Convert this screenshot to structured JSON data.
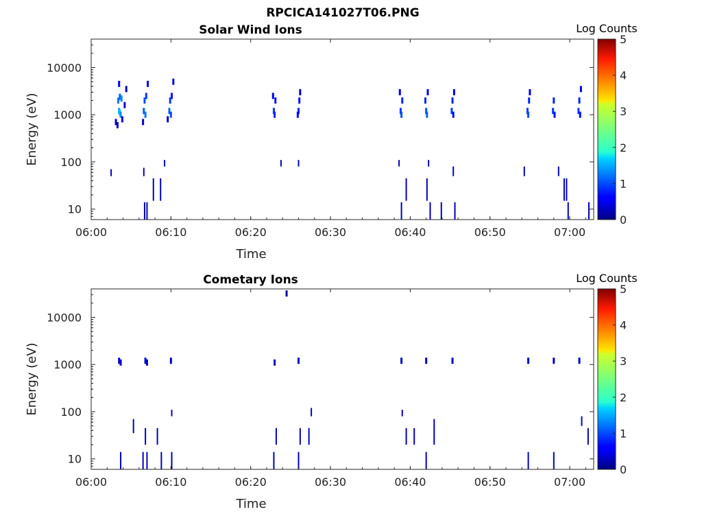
{
  "figure": {
    "title": "RPCICA141027T06.PNG"
  },
  "colors": {
    "axis": "#262626",
    "background": "#ffffff"
  },
  "chart_data": [
    {
      "type": "heatmap",
      "title": "Solar Wind Ions",
      "xlabel": "Time",
      "ylabel": "Energy (eV)",
      "x_ticks": [
        "06:00",
        "06:10",
        "06:20",
        "06:30",
        "06:40",
        "06:50",
        "07:00"
      ],
      "x_tick_minutes": [
        0,
        10,
        20,
        30,
        40,
        50,
        60
      ],
      "xlim_minutes": [
        0,
        63
      ],
      "y_ticks": [
        "10",
        "100",
        "1000",
        "10000"
      ],
      "y_tick_values": [
        10,
        100,
        1000,
        10000
      ],
      "ylim": [
        6,
        40000
      ],
      "y_scale": "log",
      "colorbar": {
        "label": "Log Counts",
        "min": 0,
        "max": 5,
        "ticks": [
          "0",
          "1",
          "2",
          "3",
          "4",
          "5"
        ],
        "colormap": "jet"
      },
      "bursts_minutes": [
        3.7,
        6.8,
        10.0,
        23.0,
        26.0,
        38.9,
        42.0,
        45.3,
        54.8,
        58.0,
        61.2
      ],
      "cells": [
        {
          "t": 3.5,
          "e": 1200,
          "v": 1.4
        },
        {
          "t": 3.6,
          "e": 1100,
          "v": 1.6
        },
        {
          "t": 3.7,
          "e": 1000,
          "v": 1.3
        },
        {
          "t": 3.4,
          "e": 2000,
          "v": 1.2
        },
        {
          "t": 3.6,
          "e": 2400,
          "v": 1.1
        },
        {
          "t": 3.8,
          "e": 2200,
          "v": 1.3
        },
        {
          "t": 3.5,
          "e": 4500,
          "v": 0.6
        },
        {
          "t": 3.9,
          "e": 800,
          "v": 0.5
        },
        {
          "t": 3.3,
          "e": 600,
          "v": 0.4
        },
        {
          "t": 4.2,
          "e": 1600,
          "v": 0.5
        },
        {
          "t": 4.4,
          "e": 3500,
          "v": 0.3
        },
        {
          "t": 3.1,
          "e": 700,
          "v": 0.3
        },
        {
          "t": 6.6,
          "e": 1200,
          "v": 1.1
        },
        {
          "t": 6.8,
          "e": 1000,
          "v": 1.2
        },
        {
          "t": 6.7,
          "e": 2000,
          "v": 1.0
        },
        {
          "t": 6.9,
          "e": 2500,
          "v": 0.9
        },
        {
          "t": 7.1,
          "e": 4500,
          "v": 0.5
        },
        {
          "t": 6.5,
          "e": 700,
          "v": 0.4
        },
        {
          "t": 9.8,
          "e": 1200,
          "v": 1.1
        },
        {
          "t": 10.0,
          "e": 1000,
          "v": 1.0
        },
        {
          "t": 9.9,
          "e": 2000,
          "v": 0.9
        },
        {
          "t": 10.1,
          "e": 2500,
          "v": 0.7
        },
        {
          "t": 10.3,
          "e": 5000,
          "v": 0.4
        },
        {
          "t": 9.6,
          "e": 800,
          "v": 0.3
        },
        {
          "t": 22.9,
          "e": 1200,
          "v": 0.9
        },
        {
          "t": 23.0,
          "e": 1000,
          "v": 0.8
        },
        {
          "t": 23.1,
          "e": 2000,
          "v": 0.7
        },
        {
          "t": 22.8,
          "e": 2500,
          "v": 0.5
        },
        {
          "t": 26.0,
          "e": 1200,
          "v": 0.8
        },
        {
          "t": 26.1,
          "e": 2000,
          "v": 0.7
        },
        {
          "t": 25.9,
          "e": 1000,
          "v": 0.6
        },
        {
          "t": 26.2,
          "e": 3000,
          "v": 0.4
        },
        {
          "t": 38.8,
          "e": 1200,
          "v": 0.9
        },
        {
          "t": 38.9,
          "e": 1000,
          "v": 1.0
        },
        {
          "t": 39.0,
          "e": 2000,
          "v": 0.8
        },
        {
          "t": 38.7,
          "e": 3000,
          "v": 0.5
        },
        {
          "t": 42.0,
          "e": 1200,
          "v": 1.0
        },
        {
          "t": 42.1,
          "e": 1000,
          "v": 1.1
        },
        {
          "t": 41.9,
          "e": 2000,
          "v": 0.8
        },
        {
          "t": 42.2,
          "e": 3000,
          "v": 0.6
        },
        {
          "t": 45.2,
          "e": 1200,
          "v": 0.9
        },
        {
          "t": 45.3,
          "e": 2000,
          "v": 0.8
        },
        {
          "t": 45.4,
          "e": 1000,
          "v": 0.7
        },
        {
          "t": 45.5,
          "e": 3000,
          "v": 0.5
        },
        {
          "t": 54.7,
          "e": 1200,
          "v": 0.9
        },
        {
          "t": 54.8,
          "e": 1000,
          "v": 1.0
        },
        {
          "t": 54.9,
          "e": 2000,
          "v": 0.8
        },
        {
          "t": 55.0,
          "e": 3000,
          "v": 0.5
        },
        {
          "t": 57.9,
          "e": 1200,
          "v": 0.9
        },
        {
          "t": 58.0,
          "e": 2000,
          "v": 0.8
        },
        {
          "t": 58.1,
          "e": 1000,
          "v": 0.7
        },
        {
          "t": 61.1,
          "e": 1200,
          "v": 0.9
        },
        {
          "t": 61.2,
          "e": 2000,
          "v": 0.8
        },
        {
          "t": 61.3,
          "e": 1000,
          "v": 0.7
        },
        {
          "t": 61.4,
          "e": 3500,
          "v": 0.5
        }
      ],
      "vertical_streaks": [
        {
          "t": 2.5,
          "e_lo": 50,
          "e_hi": 70
        },
        {
          "t": 6.7,
          "e_lo": 6,
          "e_hi": 14
        },
        {
          "t": 7.0,
          "e_lo": 6,
          "e_hi": 14
        },
        {
          "t": 7.8,
          "e_lo": 15,
          "e_hi": 45
        },
        {
          "t": 8.7,
          "e_lo": 15,
          "e_hi": 45
        },
        {
          "t": 9.2,
          "e_lo": 80,
          "e_hi": 110
        },
        {
          "t": 6.6,
          "e_lo": 50,
          "e_hi": 75
        },
        {
          "t": 23.8,
          "e_lo": 80,
          "e_hi": 110
        },
        {
          "t": 26.0,
          "e_lo": 80,
          "e_hi": 110
        },
        {
          "t": 38.9,
          "e_lo": 6,
          "e_hi": 14
        },
        {
          "t": 39.5,
          "e_lo": 15,
          "e_hi": 45
        },
        {
          "t": 42.1,
          "e_lo": 15,
          "e_hi": 45
        },
        {
          "t": 42.5,
          "e_lo": 6,
          "e_hi": 14
        },
        {
          "t": 43.9,
          "e_lo": 6,
          "e_hi": 14
        },
        {
          "t": 45.6,
          "e_lo": 6,
          "e_hi": 14
        },
        {
          "t": 45.4,
          "e_lo": 50,
          "e_hi": 80
        },
        {
          "t": 54.3,
          "e_lo": 50,
          "e_hi": 80
        },
        {
          "t": 58.6,
          "e_lo": 50,
          "e_hi": 80
        },
        {
          "t": 59.3,
          "e_lo": 15,
          "e_hi": 45
        },
        {
          "t": 59.6,
          "e_lo": 15,
          "e_hi": 45
        },
        {
          "t": 59.8,
          "e_lo": 6,
          "e_hi": 14
        },
        {
          "t": 62.4,
          "e_lo": 6,
          "e_hi": 14
        },
        {
          "t": 42.3,
          "e_lo": 80,
          "e_hi": 110
        },
        {
          "t": 38.6,
          "e_lo": 80,
          "e_hi": 110
        }
      ]
    },
    {
      "type": "heatmap",
      "title": "Cometary Ions",
      "xlabel": "Time",
      "ylabel": "Energy (eV)",
      "x_ticks": [
        "06:00",
        "06:10",
        "06:20",
        "06:30",
        "06:40",
        "06:50",
        "07:00"
      ],
      "x_tick_minutes": [
        0,
        10,
        20,
        30,
        40,
        50,
        60
      ],
      "xlim_minutes": [
        0,
        63
      ],
      "y_ticks": [
        "10",
        "100",
        "1000",
        "10000"
      ],
      "y_tick_values": [
        10,
        100,
        1000,
        10000
      ],
      "ylim": [
        6,
        40000
      ],
      "y_scale": "log",
      "colorbar": {
        "label": "Log Counts",
        "min": 0,
        "max": 5,
        "ticks": [
          "0",
          "1",
          "2",
          "3",
          "4",
          "5"
        ],
        "colormap": "jet"
      },
      "bursts_minutes": [
        3.7,
        6.8,
        10.0,
        23.0,
        26.0,
        38.9,
        42.0,
        45.3,
        54.8,
        58.0,
        61.2
      ],
      "cells": [
        {
          "t": 3.5,
          "e": 1200,
          "v": 0.4
        },
        {
          "t": 3.7,
          "e": 1100,
          "v": 0.3
        },
        {
          "t": 6.8,
          "e": 1200,
          "v": 0.4
        },
        {
          "t": 7.0,
          "e": 1100,
          "v": 0.3
        },
        {
          "t": 10.0,
          "e": 1200,
          "v": 0.3
        },
        {
          "t": 23.0,
          "e": 1100,
          "v": 0.3
        },
        {
          "t": 26.0,
          "e": 1200,
          "v": 0.3
        },
        {
          "t": 38.9,
          "e": 1200,
          "v": 0.3
        },
        {
          "t": 42.0,
          "e": 1200,
          "v": 0.3
        },
        {
          "t": 45.3,
          "e": 1200,
          "v": 0.3
        },
        {
          "t": 54.8,
          "e": 1200,
          "v": 0.3
        },
        {
          "t": 58.0,
          "e": 1200,
          "v": 0.3
        },
        {
          "t": 61.2,
          "e": 1200,
          "v": 0.3
        },
        {
          "t": 24.5,
          "e": 32000,
          "v": 0.2
        }
      ],
      "vertical_streaks": [
        {
          "t": 3.7,
          "e_lo": 6,
          "e_hi": 14
        },
        {
          "t": 5.3,
          "e_lo": 35,
          "e_hi": 70
        },
        {
          "t": 6.5,
          "e_lo": 6,
          "e_hi": 14
        },
        {
          "t": 6.8,
          "e_lo": 20,
          "e_hi": 45
        },
        {
          "t": 7.0,
          "e_lo": 6,
          "e_hi": 14
        },
        {
          "t": 8.3,
          "e_lo": 20,
          "e_hi": 45
        },
        {
          "t": 8.8,
          "e_lo": 6,
          "e_hi": 14
        },
        {
          "t": 10.1,
          "e_lo": 6,
          "e_hi": 14
        },
        {
          "t": 10.1,
          "e_lo": 80,
          "e_hi": 110
        },
        {
          "t": 22.9,
          "e_lo": 6,
          "e_hi": 14
        },
        {
          "t": 23.2,
          "e_lo": 20,
          "e_hi": 45
        },
        {
          "t": 26.0,
          "e_lo": 6,
          "e_hi": 14
        },
        {
          "t": 26.2,
          "e_lo": 20,
          "e_hi": 45
        },
        {
          "t": 27.3,
          "e_lo": 20,
          "e_hi": 45
        },
        {
          "t": 27.6,
          "e_lo": 80,
          "e_hi": 120
        },
        {
          "t": 39.0,
          "e_lo": 80,
          "e_hi": 110
        },
        {
          "t": 39.5,
          "e_lo": 20,
          "e_hi": 45
        },
        {
          "t": 40.5,
          "e_lo": 20,
          "e_hi": 45
        },
        {
          "t": 42.0,
          "e_lo": 6,
          "e_hi": 14
        },
        {
          "t": 43.0,
          "e_lo": 20,
          "e_hi": 70
        },
        {
          "t": 54.8,
          "e_lo": 6,
          "e_hi": 14
        },
        {
          "t": 58.0,
          "e_lo": 6,
          "e_hi": 14
        },
        {
          "t": 61.5,
          "e_lo": 50,
          "e_hi": 80
        },
        {
          "t": 62.3,
          "e_lo": 20,
          "e_hi": 45
        }
      ]
    }
  ]
}
